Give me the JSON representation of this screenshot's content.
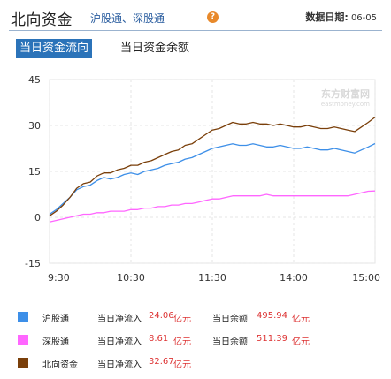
{
  "header": {
    "title": "北向资金",
    "subtitle": "沪股通、深股通",
    "help_icon": "question-icon",
    "date_label": "数据日期:",
    "date_value": "06-05"
  },
  "tabs": [
    {
      "label": "当日资金流向",
      "active": true
    },
    {
      "label": "当日资金余额",
      "active": false
    }
  ],
  "watermark": {
    "text": "东方财富网",
    "sub": "eastmoney.com"
  },
  "colors": {
    "hu": "#3d8fe8",
    "shen": "#ff66ff",
    "north": "#7a3f0a",
    "accent": "#2b73b9",
    "value_red": "#dd3333"
  },
  "chart_data": {
    "type": "line",
    "x_ticks": [
      "9:30",
      "10:30",
      "11:30",
      "14:00",
      "15:00"
    ],
    "y_ticks": [
      45,
      30,
      15,
      0,
      -15
    ],
    "ylim": [
      -15,
      45
    ],
    "grid": true,
    "series": [
      {
        "name": "沪股通",
        "color": "#3d8fe8",
        "x": [
          0,
          5,
          10,
          15,
          20,
          25,
          30,
          35,
          40,
          45,
          50,
          55,
          60,
          65,
          70,
          75,
          80,
          85,
          90,
          95,
          100,
          105,
          110,
          115,
          120,
          125,
          130,
          135,
          140,
          145,
          150,
          155,
          160,
          165,
          170,
          175,
          180,
          185,
          190,
          195,
          200,
          205,
          210,
          215,
          220,
          225,
          230,
          235,
          240
        ],
        "values": [
          1.0,
          2.5,
          4.5,
          6.5,
          9.0,
          10.0,
          10.5,
          12.0,
          13.0,
          12.5,
          13.0,
          14.0,
          14.5,
          14.0,
          15.0,
          15.5,
          16.0,
          17.0,
          17.5,
          18.0,
          19.0,
          19.5,
          20.5,
          21.5,
          22.5,
          23.0,
          23.5,
          24.0,
          23.5,
          23.5,
          24.0,
          23.5,
          23.0,
          23.0,
          23.5,
          23.0,
          22.5,
          22.5,
          23.0,
          22.5,
          22.0,
          22.0,
          22.5,
          22.0,
          21.5,
          21.0,
          22.0,
          23.0,
          24.1
        ]
      },
      {
        "name": "深股通",
        "color": "#ff66ff",
        "x": [
          0,
          5,
          10,
          15,
          20,
          25,
          30,
          35,
          40,
          45,
          50,
          55,
          60,
          65,
          70,
          75,
          80,
          85,
          90,
          95,
          100,
          105,
          110,
          115,
          120,
          125,
          130,
          135,
          140,
          145,
          150,
          155,
          160,
          165,
          170,
          175,
          180,
          185,
          190,
          195,
          200,
          205,
          210,
          215,
          220,
          225,
          230,
          235,
          240
        ],
        "values": [
          -1.5,
          -1.0,
          -0.5,
          0.0,
          0.5,
          1.0,
          1.0,
          1.5,
          1.5,
          2.0,
          2.0,
          2.0,
          2.5,
          2.5,
          3.0,
          3.0,
          3.5,
          3.5,
          4.0,
          4.0,
          4.5,
          4.5,
          5.0,
          5.5,
          6.0,
          6.0,
          6.5,
          7.0,
          7.0,
          7.0,
          7.0,
          7.0,
          7.5,
          7.0,
          7.0,
          7.0,
          7.0,
          7.0,
          7.0,
          7.0,
          7.0,
          7.0,
          7.0,
          7.0,
          7.0,
          7.5,
          8.0,
          8.5,
          8.6
        ]
      },
      {
        "name": "北向资金",
        "color": "#7a3f0a",
        "x": [
          0,
          5,
          10,
          15,
          20,
          25,
          30,
          35,
          40,
          45,
          50,
          55,
          60,
          65,
          70,
          75,
          80,
          85,
          90,
          95,
          100,
          105,
          110,
          115,
          120,
          125,
          130,
          135,
          140,
          145,
          150,
          155,
          160,
          165,
          170,
          175,
          180,
          185,
          190,
          195,
          200,
          205,
          210,
          215,
          220,
          225,
          230,
          235,
          240
        ],
        "values": [
          0.5,
          2.0,
          4.0,
          6.5,
          9.5,
          11.0,
          11.5,
          13.5,
          14.5,
          14.5,
          15.5,
          16.0,
          17.0,
          17.0,
          18.0,
          18.5,
          19.5,
          20.5,
          21.5,
          22.0,
          23.5,
          24.0,
          25.5,
          27.0,
          28.5,
          29.0,
          30.0,
          31.0,
          30.5,
          30.5,
          31.0,
          30.5,
          30.5,
          30.0,
          30.5,
          30.0,
          29.5,
          29.5,
          30.0,
          29.5,
          29.0,
          29.0,
          29.5,
          29.0,
          28.5,
          28.0,
          29.5,
          31.0,
          32.7
        ]
      }
    ]
  },
  "legend": [
    {
      "name": "沪股通",
      "color": "#3d8fe8",
      "inflow_label": "当日净流入",
      "inflow_value": "24.06",
      "inflow_unit": "亿元",
      "balance_label": "当日余额",
      "balance_value": "495.94",
      "balance_unit": "亿元"
    },
    {
      "name": "深股通",
      "color": "#ff66ff",
      "inflow_label": "当日净流入",
      "inflow_value": "8.61",
      "inflow_unit": "亿元",
      "balance_label": "当日余额",
      "balance_value": "511.39",
      "balance_unit": "亿元"
    },
    {
      "name": "北向资金",
      "color": "#7a3f0a",
      "inflow_label": "当日净流入",
      "inflow_value": "32.67",
      "inflow_unit": "亿元",
      "balance_label": "",
      "balance_value": "",
      "balance_unit": ""
    }
  ]
}
